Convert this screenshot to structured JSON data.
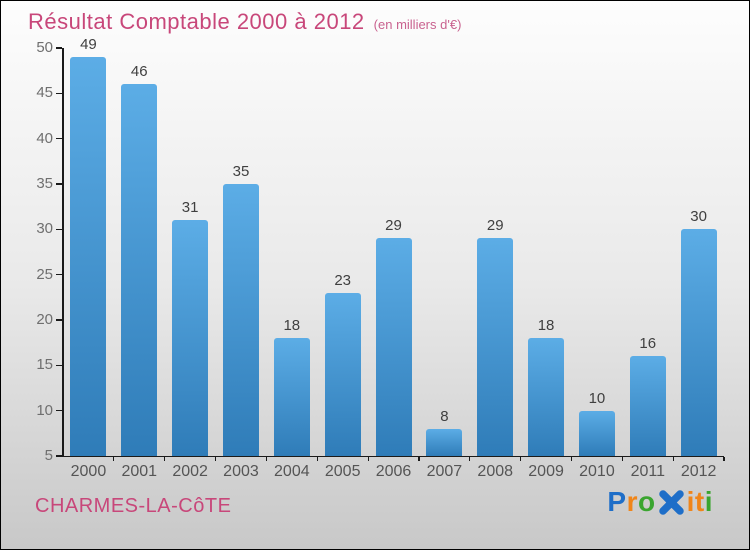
{
  "header": {
    "title": "Résultat Comptable 2000 à 2012",
    "subtitle": "(en milliers d'€)"
  },
  "chart_data": {
    "type": "bar",
    "title": "Résultat Comptable 2000 à 2012",
    "subtitle": "(en milliers d'€)",
    "categories": [
      "2000",
      "2001",
      "2002",
      "2003",
      "2004",
      "2005",
      "2006",
      "2007",
      "2008",
      "2009",
      "2010",
      "2011",
      "2012"
    ],
    "values": [
      49,
      46,
      31,
      35,
      18,
      23,
      29,
      8,
      29,
      18,
      10,
      16,
      30
    ],
    "xlabel": "",
    "ylabel": "",
    "ylim": [
      5,
      50
    ],
    "ytick_step": 5,
    "yticks": [
      5,
      10,
      15,
      20,
      25,
      30,
      35,
      40,
      45,
      50
    ],
    "grid": false,
    "legend": false,
    "value_labels_shown": true
  },
  "footer": {
    "commune": "CHARMES-LA-CôTE",
    "logo_text": "ProXiti"
  },
  "logo": {
    "letters": [
      {
        "ch": "P",
        "color": "#1e6ec8"
      },
      {
        "ch": "r",
        "color": "#f08519"
      },
      {
        "ch": "o",
        "color": "#3aa52f"
      },
      {
        "ch": "X",
        "color": "#1e6ec8",
        "x_icon": true
      },
      {
        "ch": "i",
        "color": "#f08519"
      },
      {
        "ch": "t",
        "color": "#f08519"
      },
      {
        "ch": "i",
        "color": "#3aa52f"
      }
    ]
  },
  "colors": {
    "title": "#c8477a",
    "subtitle": "#c9628f",
    "background_top": "#fdfdfd",
    "background_mid": "#e9e9e9",
    "background_bottom": "#c8c8c8",
    "bar_top": "#5cade6",
    "bar_bottom": "#2f7cb8",
    "axis": "#1a1a1a",
    "value_label": "#3f3f3f",
    "x_label": "#555555",
    "y_label": "#6f6f6f",
    "commune": "#c8477a"
  }
}
